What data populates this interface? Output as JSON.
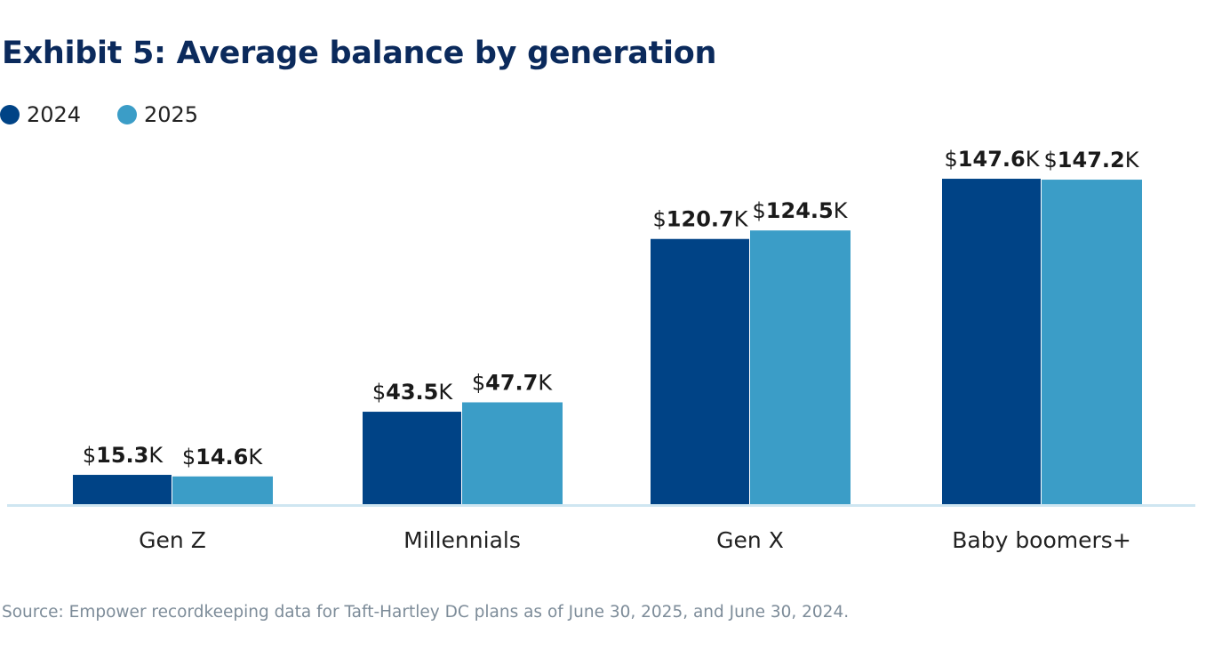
{
  "title": "Exhibit 5: Average balance by generation",
  "source": "Source: Empower recordkeeping data for Taft-Hartley DC plans as of June 30, 2025, and June 30, 2024.",
  "colors": {
    "2024": "#004386",
    "2025": "#3b9dc7",
    "axis": "#cfe6f1",
    "title": "#0b2a5c"
  },
  "chart_data": {
    "type": "bar",
    "title": "Exhibit 5: Average balance by generation",
    "categories": [
      "Gen Z",
      "Millennials",
      "Gen X",
      "Baby boomers+"
    ],
    "series": [
      {
        "name": "2024",
        "values": [
          15.3,
          43.5,
          120.7,
          147.6
        ],
        "labels": [
          "15.3",
          "43.5",
          "120.7",
          "147.6"
        ]
      },
      {
        "name": "2025",
        "values": [
          14.6,
          47.7,
          124.5,
          147.2
        ],
        "labels": [
          "14.6",
          "47.7",
          "124.5",
          "147.2"
        ]
      }
    ],
    "label_prefix": "$",
    "label_suffix": "K",
    "unit": "thousands of dollars",
    "legend_position": "top-left",
    "grid": false
  }
}
